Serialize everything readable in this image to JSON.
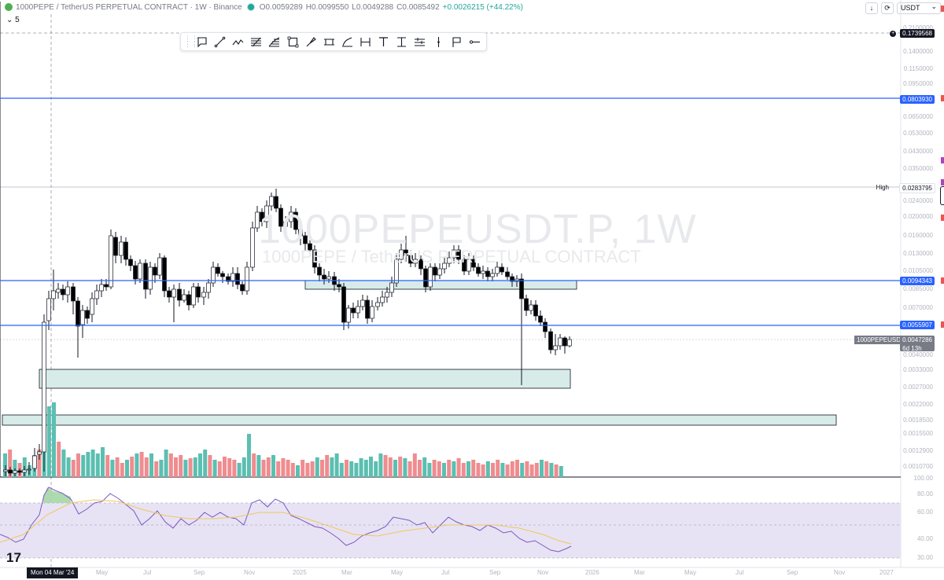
{
  "header": {
    "symbol": "1000PEPE / TetherUS PERPETUAL CONTRACT · 1W · Binance",
    "open_label": "O",
    "open": "0.0059289",
    "high_label": "H",
    "high": "0.0099550",
    "low_label": "L",
    "low": "0.0049288",
    "close_label": "C",
    "close": "0.0085492",
    "change": "+0.0026215 (+44.22%)",
    "indicator_count": "5",
    "currency": "USDT"
  },
  "toolbar": {
    "tools": [
      "callout-tool",
      "trend-line-tool",
      "path-tool",
      "pitchfork-tool",
      "fib-tool",
      "rectangle-tool",
      "brush-tool",
      "parallel-channel-tool",
      "curve-tool",
      "date-range-tool",
      "text-tool",
      "price-range-tool",
      "long-position-tool",
      "vertical-line-tool",
      "flag-tool",
      "horizontal-ray-tool"
    ]
  },
  "watermark": {
    "title": "1000PEPEUSDT.P, 1W",
    "subtitle": "1000PEPE / TetherUS PERPETUAL CONTRACT"
  },
  "price_axis": {
    "ticks": [
      "0.2100000",
      "0.1400000",
      "0.1150000",
      "0.0950000",
      "0.0650000",
      "0.0530000",
      "0.0430000",
      "0.0350000",
      "0.0240000",
      "0.0200000",
      "0.0160000",
      "0.0130000",
      "0.0105000",
      "0.0085000",
      "0.0070000",
      "0.0040000",
      "0.0033000",
      "0.0027000",
      "0.0022000",
      "0.0018500",
      "0.0015500",
      "0.0012900",
      "0.0010700"
    ],
    "labels": {
      "top": "0.1739568",
      "line1": "0.0803930",
      "high_text": "High",
      "high": "0.0283795",
      "line2": "0.0094343",
      "line3": "0.0055907",
      "symbol": "1000PEPEUSDT.P",
      "last": "0.0047286",
      "countdown": "6d 13h"
    }
  },
  "time_axis": {
    "crosshair": "Mon 04 Mar '24",
    "ticks": [
      "May",
      "Jul",
      "Sep",
      "Nov",
      "2025",
      "Mar",
      "May",
      "Jul",
      "Sep",
      "Nov",
      "2026",
      "Mar",
      "May",
      "Jul",
      "Sep",
      "Nov",
      "2027"
    ]
  },
  "rsi_axis": {
    "ticks": [
      "100.00",
      "80.00",
      "60.00",
      "40.00",
      "30.00"
    ]
  },
  "colors": {
    "up": "#ffffff",
    "down": "#000000",
    "vol_up": "#5bbfb1",
    "vol_down": "#ef8c8f",
    "level": "#2962ff",
    "zone_fill": "#d7ebe9",
    "rsi_band": "#e7e3f4",
    "rsi_line": "#7e57c2",
    "rsi_ma": "#f0c75e"
  },
  "logo_text": "17"
}
